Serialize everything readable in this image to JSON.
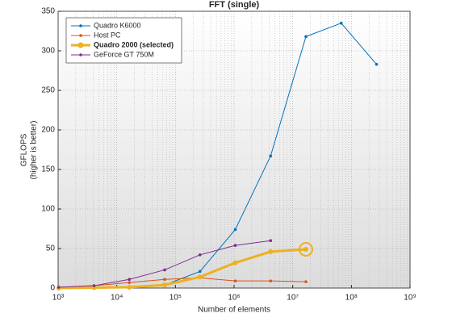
{
  "chart_data": {
    "type": "line",
    "title": "FFT (single)",
    "xlabel": "Number of elements",
    "ylabel": [
      "GFLOPS",
      "(higher is better)"
    ],
    "x": [
      1024,
      4096,
      16384,
      65536,
      262144,
      1048576,
      4194304,
      16777216,
      67108864,
      268435456
    ],
    "xscale": "log",
    "xlim": [
      1000,
      1000000000
    ],
    "xticks": [
      {
        "value": 1000,
        "label": "10³"
      },
      {
        "value": 10000,
        "label": "10⁴"
      },
      {
        "value": 100000,
        "label": "10⁵"
      },
      {
        "value": 1000000,
        "label": "10⁶"
      },
      {
        "value": 10000000,
        "label": "10⁷"
      },
      {
        "value": 100000000,
        "label": "10⁸"
      },
      {
        "value": 1000000000,
        "label": "10⁹"
      }
    ],
    "ylim": [
      0,
      350
    ],
    "yticks": [
      0,
      50,
      100,
      150,
      200,
      250,
      300,
      350
    ],
    "grid": true,
    "legend": "upper left",
    "series": [
      {
        "name": "Quadro K6000",
        "color": "#0072bd",
        "values": [
          0,
          0.5,
          1,
          4,
          21,
          74,
          167,
          318,
          335,
          283
        ]
      },
      {
        "name": "Host PC",
        "color": "#d95319",
        "values": [
          1,
          3,
          7,
          11,
          13,
          9,
          9,
          8,
          null,
          null
        ]
      },
      {
        "name": "Quadro 2000 (selected)",
        "color": "#edb120",
        "selected": true,
        "values": [
          0,
          0.5,
          1,
          4,
          14,
          32,
          46,
          49,
          null,
          null
        ]
      },
      {
        "name": "GeForce GT 750M",
        "color": "#7e2f8e",
        "values": [
          1,
          3,
          11,
          23,
          42,
          54,
          60,
          null,
          null,
          null
        ]
      }
    ]
  }
}
